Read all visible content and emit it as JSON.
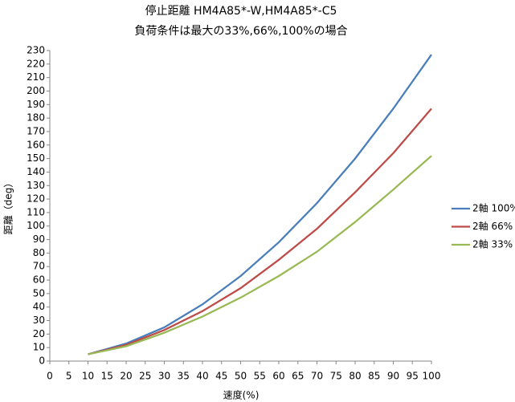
{
  "chart_data": {
    "type": "line",
    "title": "停止距離 HM4A85*-W,HM4A85*-C5",
    "subtitle": "負荷条件は最大の33%,66%,100%の場合",
    "x_label": "速度(%)",
    "y_label": "距離（deg）",
    "x": [
      10,
      20,
      30,
      40,
      50,
      60,
      70,
      80,
      90,
      100
    ],
    "series": [
      {
        "name": "2軸 100%",
        "color": "#4a7ebb",
        "values": [
          5,
          13,
          25,
          42,
          63,
          88,
          117,
          150,
          187,
          227
        ]
      },
      {
        "name": "2軸 66%",
        "color": "#be4b48",
        "values": [
          5,
          12,
          23,
          37,
          54,
          75,
          98,
          125,
          154,
          187
        ]
      },
      {
        "name": "2軸 33%",
        "color": "#98b954",
        "values": [
          5,
          11,
          21,
          33,
          47,
          63,
          81,
          103,
          127,
          152
        ]
      }
    ],
    "xlim": [
      0,
      100
    ],
    "xticks": [
      0,
      5,
      10,
      15,
      20,
      25,
      30,
      35,
      40,
      45,
      50,
      55,
      60,
      65,
      70,
      75,
      80,
      85,
      90,
      95,
      100
    ],
    "ylim": [
      0,
      230
    ],
    "yticks": [
      0,
      10,
      20,
      30,
      40,
      50,
      60,
      70,
      80,
      90,
      100,
      110,
      120,
      130,
      140,
      150,
      160,
      170,
      180,
      190,
      200,
      210,
      220,
      230
    ],
    "grid": false,
    "legend": "right"
  }
}
